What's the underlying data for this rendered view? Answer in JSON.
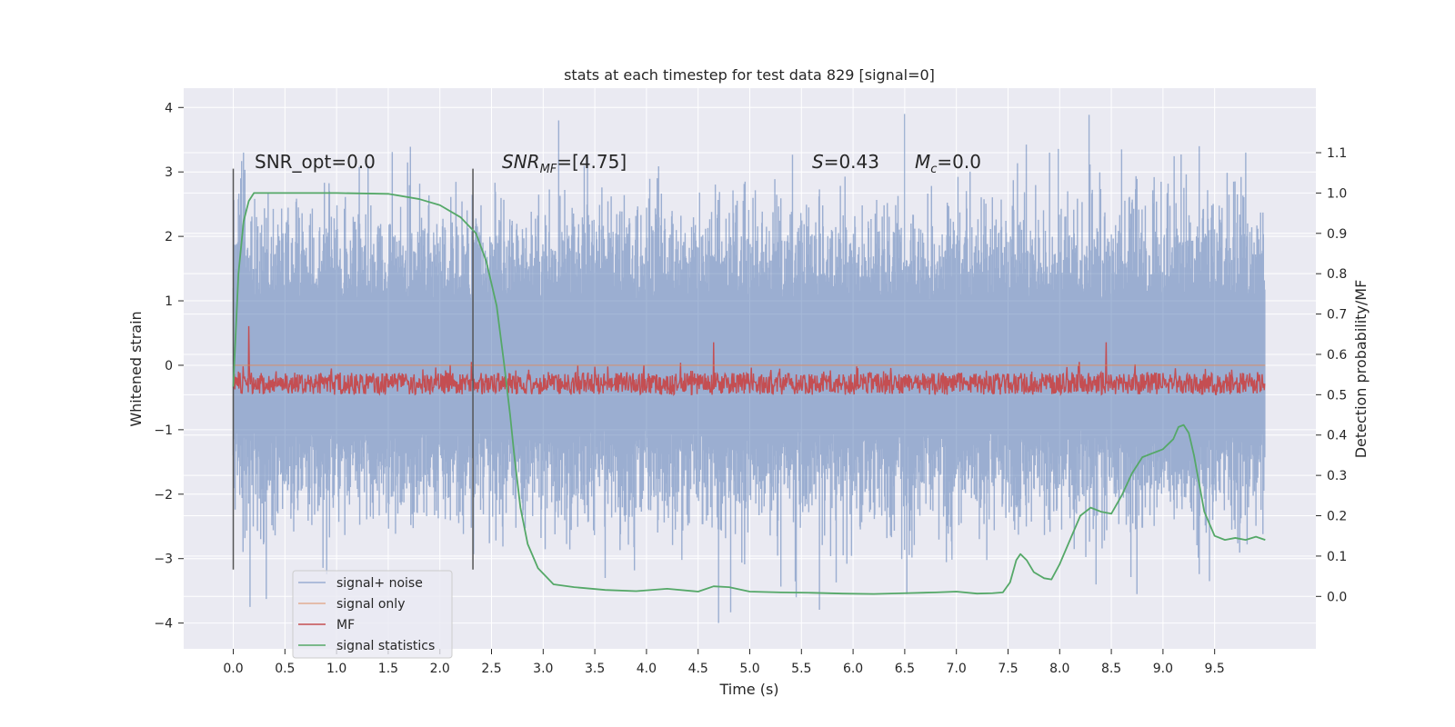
{
  "chart_data": {
    "type": "line",
    "title": "stats at each timestep for test data 829 [signal=0]",
    "xlabel": "Time (s)",
    "ylabel_left": "Whitened strain",
    "ylabel_right": "Detection probability/MF",
    "xlim": [
      -0.48,
      10.48
    ],
    "ylim_left": [
      -4.4,
      4.3
    ],
    "ylim_right": [
      -0.13,
      1.26
    ],
    "x_ticks": [
      "0.0",
      "0.5",
      "1.0",
      "1.5",
      "2.0",
      "2.5",
      "3.0",
      "3.5",
      "4.0",
      "4.5",
      "5.0",
      "5.5",
      "6.0",
      "6.5",
      "7.0",
      "7.5",
      "8.0",
      "8.5",
      "9.0",
      "9.5"
    ],
    "y_ticks_left": [
      "4",
      "3",
      "2",
      "1",
      "0",
      "−1",
      "−2",
      "−3",
      "−4"
    ],
    "y_ticks_right": [
      "1.1",
      "1.0",
      "0.9",
      "0.8",
      "0.7",
      "0.6",
      "0.5",
      "0.4",
      "0.3",
      "0.2",
      "0.1",
      "0.0"
    ],
    "grid": true,
    "legend_position": "lower-left",
    "colors": {
      "background": "#eaeaf2",
      "grid": "#ffffff",
      "noise": "#4c72b0",
      "signal_only": "#dd8452",
      "mf": "#c44e52",
      "stat": "#55a868",
      "vline": "#555555"
    },
    "annotations": {
      "snr_opt": "SNR_opt=0.0",
      "snr_mf_prefix": "SNR",
      "snr_mf_sub": "MF",
      "snr_mf_suffix": "=[4.75]",
      "s_label": "S",
      "s_value": "=0.43",
      "mc_label": "M",
      "mc_sub": "c",
      "mc_value": "=0.0"
    },
    "vlines": [
      0.0,
      2.32
    ],
    "series": [
      {
        "name": "signal+ noise",
        "axis": "left",
        "x_range": [
          0.0,
          9.99
        ],
        "typical_range": [
          -2.5,
          2.6
        ],
        "extremes": [
          {
            "x": 0.1,
            "y": 3.3
          },
          {
            "x": 0.16,
            "y": -3.75
          },
          {
            "x": 3.15,
            "y": 3.8
          },
          {
            "x": 3.6,
            "y": -3.3
          },
          {
            "x": 4.7,
            "y": -4.0
          },
          {
            "x": 5.45,
            "y": -3.6
          },
          {
            "x": 6.5,
            "y": 3.9
          },
          {
            "x": 6.52,
            "y": -3.55
          },
          {
            "x": 8.35,
            "y": -3.4
          },
          {
            "x": 8.75,
            "y": -3.55
          },
          {
            "x": 9.35,
            "y": 3.4
          },
          {
            "x": 9.45,
            "y": -3.35
          },
          {
            "x": 9.8,
            "y": 3.3
          },
          {
            "x": 7.9,
            "y": 3.3
          },
          {
            "x": 8.6,
            "y": 3.35
          }
        ]
      },
      {
        "name": "signal only",
        "axis": "left",
        "x": [
          0.0,
          9.99
        ],
        "y": [
          0.0,
          0.0
        ]
      },
      {
        "name": "MF",
        "axis": "right",
        "x_range": [
          0.0,
          9.99
        ],
        "typical_range": [
          0.5,
          0.58
        ],
        "extremes": [
          {
            "x": 0.15,
            "y": 0.67
          },
          {
            "x": 4.65,
            "y": 0.63
          },
          {
            "x": 8.45,
            "y": 0.63
          }
        ]
      },
      {
        "name": "signal statistics",
        "axis": "right",
        "x": [
          0.0,
          0.05,
          0.1,
          0.15,
          0.2,
          0.3,
          0.5,
          1.0,
          1.5,
          1.8,
          2.0,
          2.2,
          2.35,
          2.45,
          2.55,
          2.62,
          2.68,
          2.72,
          2.78,
          2.85,
          2.95,
          3.1,
          3.3,
          3.6,
          3.9,
          4.2,
          4.5,
          4.65,
          4.8,
          5.0,
          5.3,
          5.6,
          5.9,
          6.2,
          6.5,
          6.8,
          7.0,
          7.2,
          7.35,
          7.45,
          7.52,
          7.58,
          7.62,
          7.68,
          7.75,
          7.85,
          7.92,
          8.0,
          8.1,
          8.2,
          8.3,
          8.4,
          8.5,
          8.6,
          8.7,
          8.8,
          8.9,
          9.0,
          9.1,
          9.15,
          9.2,
          9.25,
          9.3,
          9.35,
          9.4,
          9.5,
          9.6,
          9.7,
          9.8,
          9.9,
          9.99
        ],
        "y": [
          0.52,
          0.8,
          0.93,
          0.98,
          1.0,
          1.0,
          1.0,
          1.0,
          0.998,
          0.985,
          0.97,
          0.94,
          0.9,
          0.83,
          0.72,
          0.58,
          0.45,
          0.35,
          0.22,
          0.13,
          0.07,
          0.03,
          0.023,
          0.016,
          0.013,
          0.019,
          0.012,
          0.025,
          0.023,
          0.012,
          0.01,
          0.009,
          0.007,
          0.006,
          0.008,
          0.01,
          0.012,
          0.007,
          0.008,
          0.01,
          0.035,
          0.09,
          0.105,
          0.09,
          0.06,
          0.045,
          0.042,
          0.08,
          0.14,
          0.2,
          0.22,
          0.21,
          0.205,
          0.25,
          0.305,
          0.345,
          0.355,
          0.365,
          0.39,
          0.42,
          0.425,
          0.405,
          0.35,
          0.28,
          0.21,
          0.15,
          0.14,
          0.145,
          0.14,
          0.148,
          0.14
        ]
      }
    ]
  }
}
